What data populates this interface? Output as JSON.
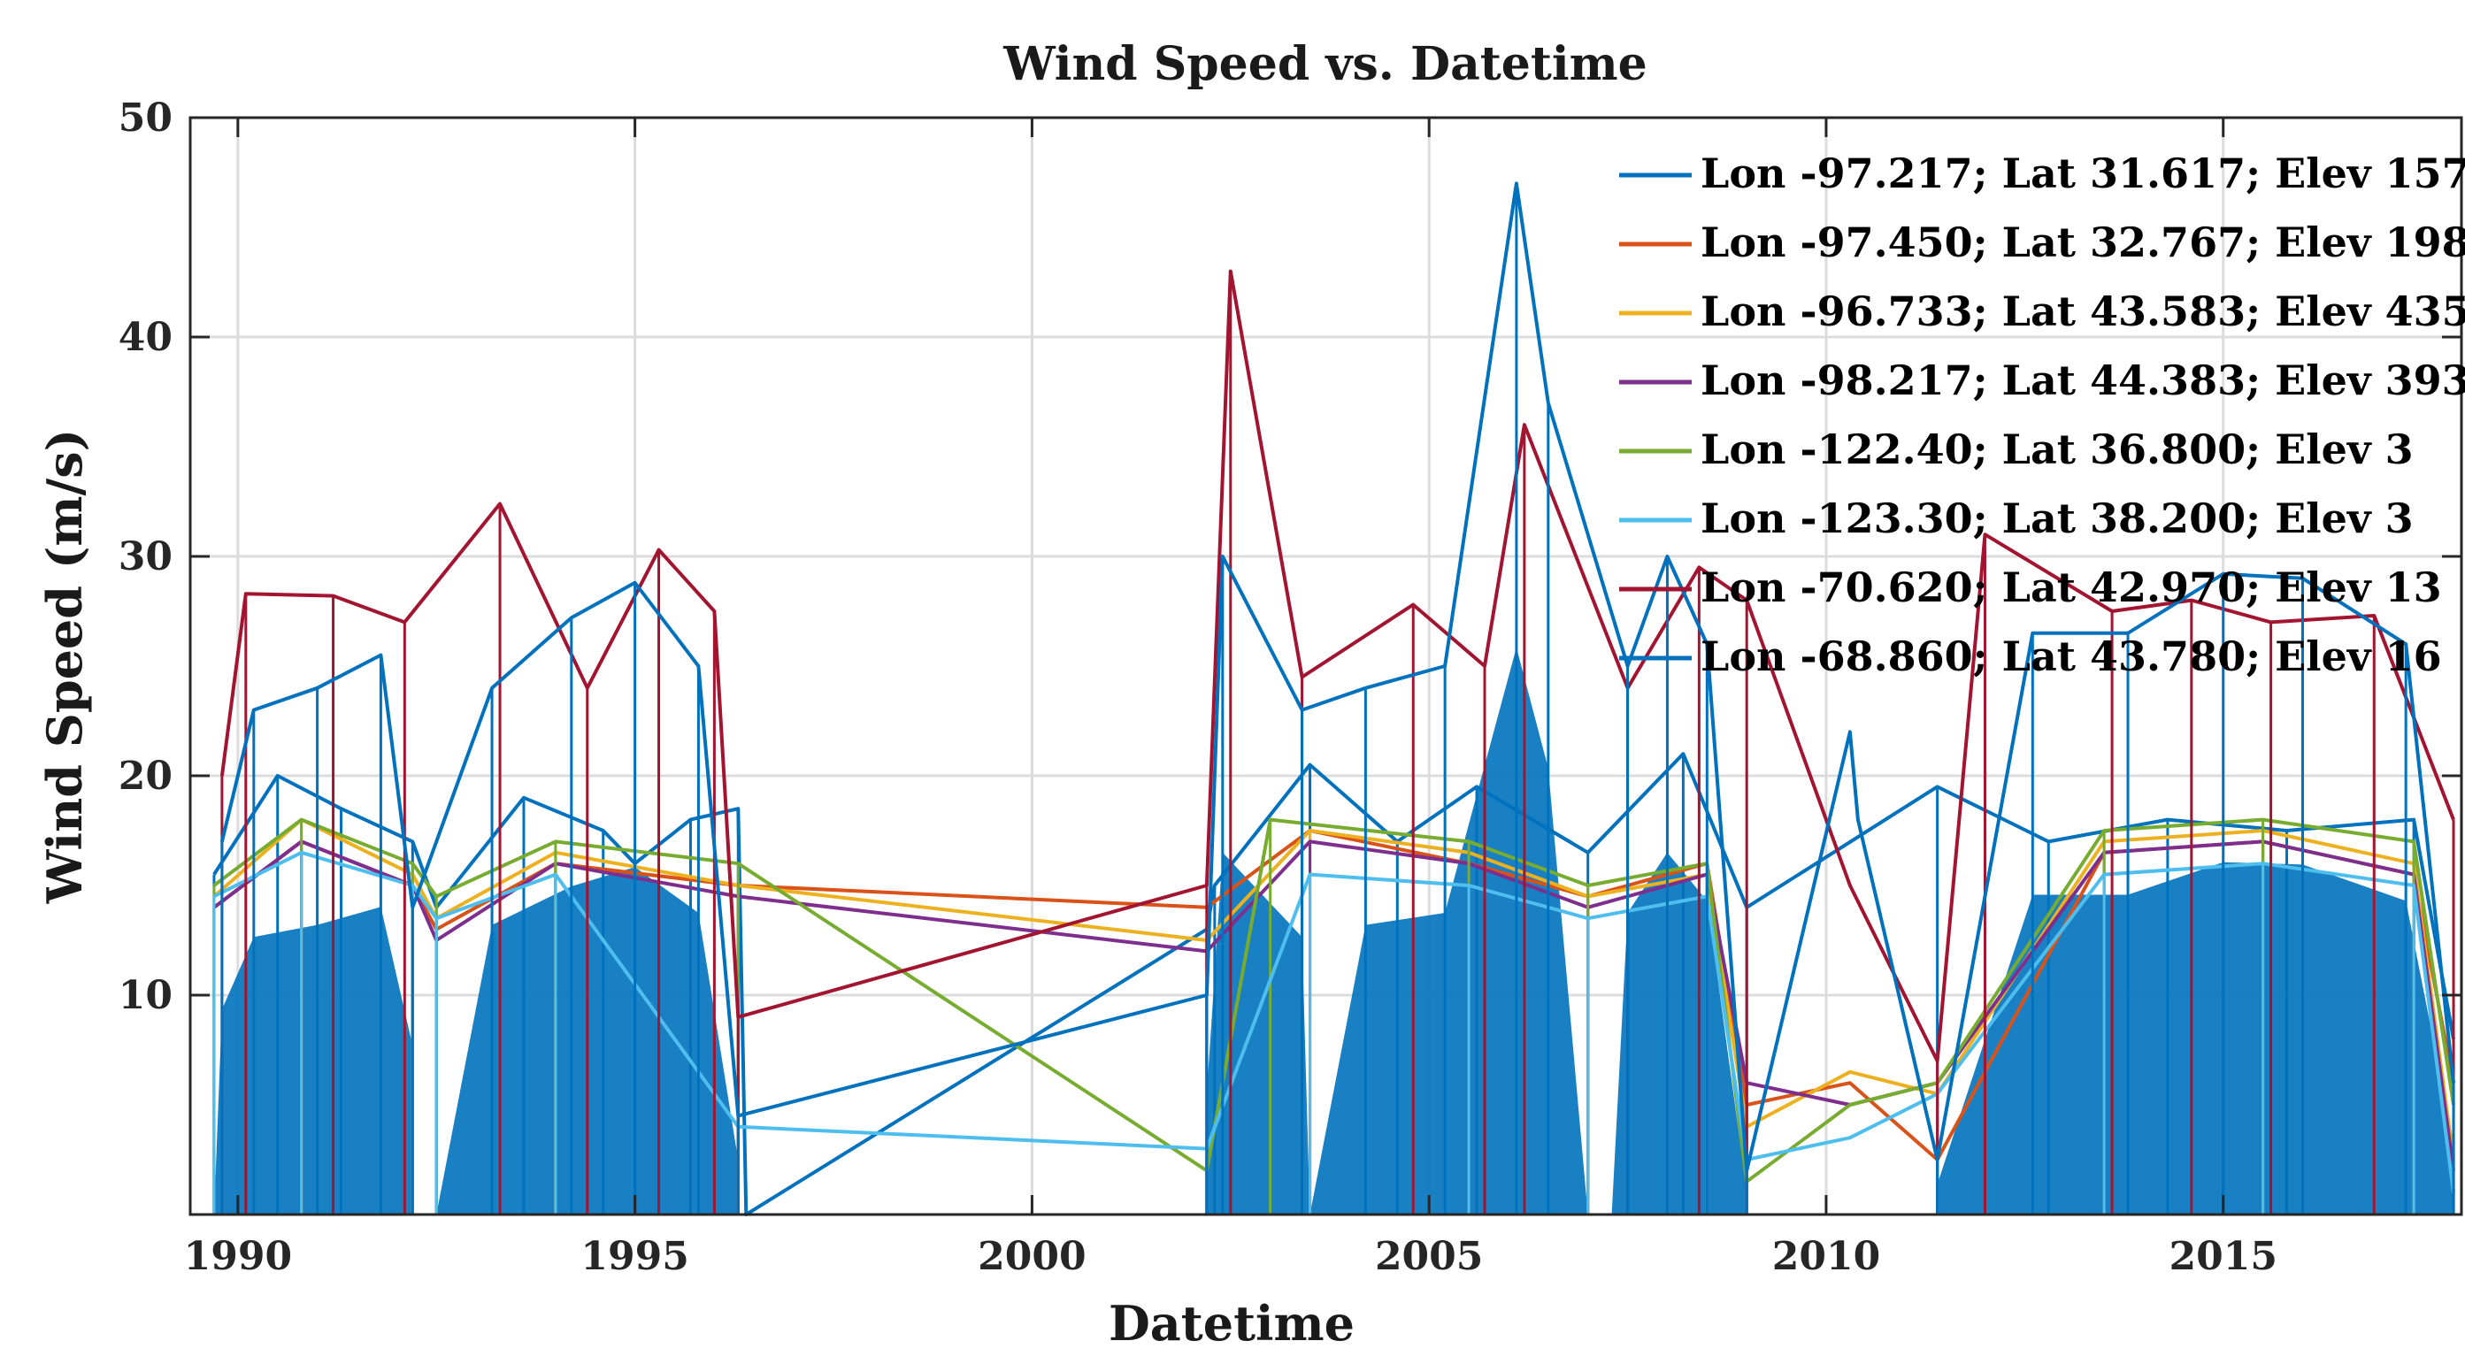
{
  "chart_data": {
    "type": "line",
    "title": "Wind Speed vs. Datetime",
    "xlabel": "Datetime",
    "ylabel": "Wind Speed (m/s)",
    "xlim": [
      1989.4,
      2018.0
    ],
    "ylim": [
      0,
      50
    ],
    "x_ticks": [
      1990,
      1995,
      2000,
      2005,
      2010,
      2015
    ],
    "x_tick_labels": [
      "1990",
      "1995",
      "2000",
      "2005",
      "2010",
      "2015"
    ],
    "y_ticks": [
      10,
      20,
      30,
      40,
      50
    ],
    "y_tick_labels": [
      "10",
      "20",
      "30",
      "40",
      "50"
    ],
    "grid": true,
    "legend_position": "top-right",
    "series": [
      {
        "name": "Lon -97.217; Lat 31.617; Elev 157",
        "color": "#0072BD",
        "x": [
          1989.7,
          1990.5,
          1991.3,
          1992.2,
          1992.5,
          1993.6,
          1994.6,
          1995.0,
          1995.7,
          1996.3,
          1996.4,
          2002.2,
          2002.3,
          2003.5,
          2004.6,
          2005.6,
          2007.0,
          2008.2,
          2009.0,
          2011.4,
          2012.8,
          2014.3,
          2015.8,
          2017.4,
          2017.9
        ],
        "y": [
          15.5,
          20.0,
          18.5,
          17.0,
          14.0,
          19.0,
          17.5,
          16.0,
          18.0,
          18.5,
          0.0,
          13.0,
          15.0,
          20.5,
          17.0,
          19.5,
          16.5,
          21.0,
          14.0,
          19.5,
          17.0,
          18.0,
          17.5,
          18.0,
          8.0
        ]
      },
      {
        "name": "Lon -97.450; Lat 32.767; Elev 198",
        "color": "#D95319",
        "x": [
          1989.7,
          1990.8,
          1992.2,
          1992.5,
          1994.0,
          1996.3,
          2002.2,
          2003.5,
          2005.5,
          2007.0,
          2008.5,
          2009.0,
          2010.3,
          2011.4,
          2013.5,
          2015.5,
          2017.4,
          2017.9
        ],
        "y": [
          14.0,
          17.0,
          15.0,
          13.0,
          16.0,
          15.0,
          14.0,
          17.5,
          16.0,
          14.5,
          16.0,
          5.0,
          6.0,
          2.5,
          16.5,
          17.0,
          15.5,
          6.0
        ]
      },
      {
        "name": "Lon -96.733; Lat 43.583; Elev 435",
        "color": "#EDB120",
        "x": [
          1989.7,
          1990.8,
          1992.2,
          1992.5,
          1994.0,
          1996.3,
          2002.2,
          2003.5,
          2005.5,
          2007.0,
          2008.5,
          2009.0,
          2010.3,
          2011.4,
          2013.5,
          2015.5,
          2017.4,
          2017.9
        ],
        "y": [
          14.5,
          18.0,
          15.5,
          13.5,
          16.5,
          15.0,
          12.5,
          17.5,
          16.5,
          14.5,
          15.5,
          4.0,
          6.5,
          5.5,
          17.0,
          17.5,
          16.0,
          2.5
        ]
      },
      {
        "name": "Lon -98.217; Lat 44.383; Elev 393",
        "color": "#7E2F8E",
        "x": [
          1989.7,
          1990.8,
          1992.2,
          1992.5,
          1994.0,
          1996.3,
          2002.2,
          2003.5,
          2005.5,
          2007.0,
          2008.5,
          2009.0,
          2010.3,
          2011.4,
          2013.5,
          2015.5,
          2017.4,
          2017.9
        ],
        "y": [
          14.0,
          17.0,
          15.0,
          12.5,
          16.0,
          14.5,
          12.0,
          17.0,
          16.0,
          14.0,
          15.5,
          6.0,
          5.0,
          6.0,
          16.5,
          17.0,
          15.5,
          2.0
        ]
      },
      {
        "name": "Lon -122.40; Lat 36.800; Elev 3",
        "color": "#77AC30",
        "x": [
          1989.7,
          1990.8,
          1992.2,
          1992.5,
          1994.0,
          1996.3,
          2002.2,
          2003.0,
          2005.5,
          2007.0,
          2008.5,
          2009.0,
          2010.3,
          2011.4,
          2013.5,
          2015.5,
          2017.4,
          2017.9
        ],
        "y": [
          15.0,
          18.0,
          16.0,
          14.5,
          17.0,
          16.0,
          2.0,
          18.0,
          17.0,
          15.0,
          16.0,
          1.5,
          5.0,
          6.0,
          17.5,
          18.0,
          17.0,
          5.0
        ]
      },
      {
        "name": "Lon -123.30; Lat 38.200; Elev 3",
        "color": "#4DBEEE",
        "x": [
          1989.7,
          1990.8,
          1992.2,
          1992.5,
          1994.0,
          1996.3,
          2002.2,
          2003.5,
          2005.5,
          2007.0,
          2008.5,
          2009.0,
          2010.3,
          2011.4,
          2013.5,
          2015.5,
          2017.4,
          2017.9
        ],
        "y": [
          14.5,
          16.5,
          15.0,
          13.5,
          15.5,
          4.0,
          3.0,
          15.5,
          15.0,
          13.5,
          14.5,
          2.5,
          3.5,
          5.5,
          15.5,
          16.0,
          15.0,
          1.0
        ]
      },
      {
        "name": "Lon -70.620; Lat 42.970; Elev 13",
        "color": "#A2142F",
        "x": [
          1989.8,
          1990.1,
          1991.2,
          1992.1,
          1993.3,
          1994.4,
          1995.3,
          1996.0,
          1996.3,
          2002.2,
          2002.5,
          2003.4,
          2004.8,
          2005.7,
          2006.2,
          2007.5,
          2008.4,
          2009.0,
          2010.3,
          2011.4,
          2012.0,
          2013.6,
          2014.6,
          2015.6,
          2016.9,
          2017.9
        ],
        "y": [
          20.0,
          28.3,
          28.2,
          27.0,
          32.4,
          24.0,
          30.3,
          27.5,
          9.0,
          15.0,
          43.0,
          24.5,
          27.8,
          25.0,
          36.0,
          24.0,
          29.5,
          28.0,
          15.0,
          7.0,
          31.0,
          27.5,
          28.0,
          27.0,
          27.3,
          18.0
        ]
      },
      {
        "name": "Lon -68.860; Lat 43.780; Elev 16",
        "color": "#0072BD",
        "x": [
          1989.8,
          1990.2,
          1991.0,
          1991.8,
          1992.2,
          1993.2,
          1994.2,
          1995.0,
          1995.8,
          1996.3,
          2002.2,
          2002.4,
          2003.4,
          2004.2,
          2005.2,
          2006.1,
          2006.5,
          2007.5,
          2008.0,
          2008.5,
          2009.0,
          2010.3,
          2010.4,
          2011.4,
          2012.6,
          2013.8,
          2015.0,
          2016.0,
          2017.3,
          2017.9
        ],
        "y": [
          17.0,
          23.0,
          24.0,
          25.5,
          14.0,
          24.0,
          27.2,
          28.8,
          25.0,
          4.5,
          10.0,
          30.0,
          23.0,
          24.0,
          25.0,
          47.0,
          37.0,
          25.0,
          30.0,
          26.0,
          2.0,
          22.0,
          18.0,
          2.5,
          26.5,
          26.5,
          29.2,
          29.0,
          26.0,
          6.0
        ]
      }
    ]
  }
}
